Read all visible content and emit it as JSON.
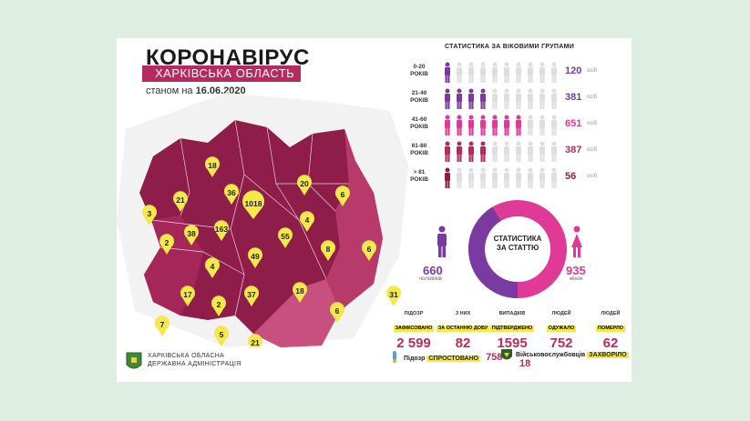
{
  "header": {
    "title": "КОРОНАВІРУС",
    "subtitle": "ХАРКІВСЬКА ОБЛАСТЬ",
    "as_of_prefix": "станом на",
    "as_of_date": "16.06.2020"
  },
  "map": {
    "pins": [
      "1018",
      "163",
      "55",
      "49",
      "37",
      "38",
      "36",
      "31",
      "21",
      "21",
      "20",
      "18",
      "18",
      "17",
      "8",
      "7",
      "6",
      "6",
      "6",
      "5",
      "4",
      "4",
      "3",
      "2",
      "2"
    ]
  },
  "age_stats": {
    "title": "СТАТИСТИКА ЗА ВІКОВИМИ ГРУПАМИ",
    "unit": "осіб",
    "groups": [
      {
        "label_line1": "0-20",
        "label_line2": "РОКІВ",
        "count": "120",
        "filled": 1,
        "color": "#7a3ba0"
      },
      {
        "label_line1": "21-40",
        "label_line2": "РОКІВ",
        "count": "381",
        "filled": 4,
        "color": "#7a3ba0"
      },
      {
        "label_line1": "41-60",
        "label_line2": "РОКІВ",
        "count": "651",
        "filled": 7,
        "color": "#e03a97"
      },
      {
        "label_line1": "61-80",
        "label_line2": "РОКІВ",
        "count": "387",
        "filled": 4,
        "color": "#b72a60"
      },
      {
        "label_line1": "> 81",
        "label_line2": "РОКІВ",
        "count": "56",
        "filled": 1,
        "color": "#8a1f4a"
      }
    ]
  },
  "gender": {
    "center_line1": "СТАТИСТИКА",
    "center_line2": "ЗА СТАТТЮ",
    "male_count": "660",
    "male_label": "чоловіків",
    "female_count": "935",
    "female_label": "жінок",
    "male_share": 0.414,
    "colors": {
      "male": "#7a3ba0",
      "female": "#e03a97"
    }
  },
  "totals": [
    {
      "line1": "ПІДОЗР",
      "line2": "ЗАФІКСОВАНО",
      "value": "2 599"
    },
    {
      "line1": "З НИХ",
      "line2": "ЗА ОСТАННЮ ДОБУ",
      "value": "82"
    },
    {
      "line1": "ВИПАДКІВ",
      "line2": "ПІДТВЕРДЖЕНО",
      "value": "1595"
    },
    {
      "line1": "ЛЮДЕЙ",
      "line2": "ОДУЖАЛО",
      "value": "752"
    },
    {
      "line1": "ЛЮДЕЙ",
      "line2": "ПОМЕРЛО",
      "value": "62"
    }
  ],
  "footer": {
    "admin_line1": "ХАРКІВСЬКА ОБЛАСНА",
    "admin_line2": "ДЕРЖАВНА АДМІНІСТРАЦІЯ",
    "refuted_label": "Підозр",
    "refuted_hl": "СПРОСТОВАНО",
    "refuted_value": "758",
    "military_label": "Військовослужбовців",
    "military_hl": "ЗАХВОРІЛО",
    "military_value": "18"
  },
  "colors": {
    "accent": "#b72a60",
    "pin": "#f4e84a"
  }
}
